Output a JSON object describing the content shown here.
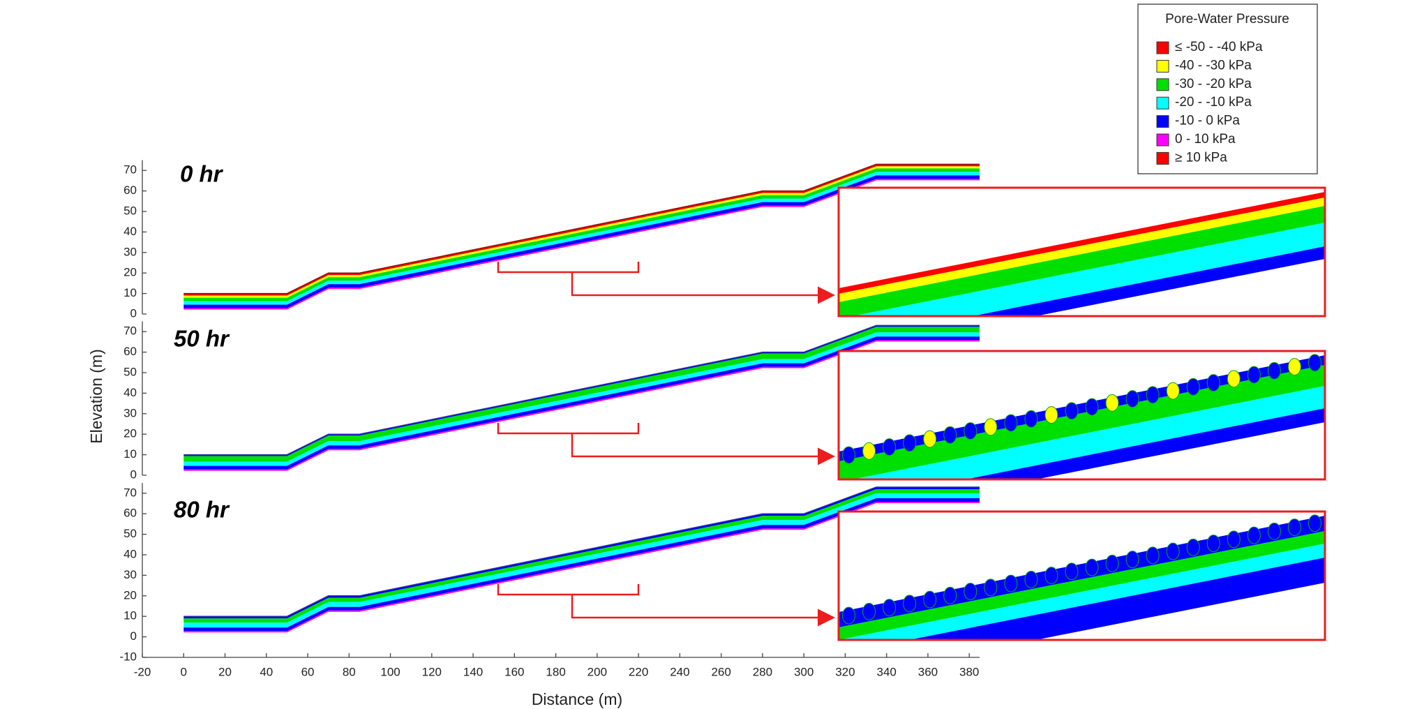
{
  "chart_data": {
    "type": "contour-profile",
    "xlabel": "Distance (m)",
    "ylabel": "Elevation (m)",
    "xlim": [
      -20,
      385
    ],
    "xticks": [
      -20,
      0,
      20,
      40,
      60,
      80,
      100,
      120,
      140,
      160,
      180,
      200,
      220,
      240,
      260,
      280,
      300,
      320,
      340,
      360,
      380
    ],
    "surface": {
      "x": [
        0,
        50,
        70,
        85,
        280,
        300,
        335,
        385
      ],
      "y": [
        10,
        10,
        20,
        20,
        60,
        60,
        73,
        73
      ]
    },
    "legend_title": "Pore-Water Pressure",
    "series": [
      {
        "name": "≤ -50 - -40 kPa",
        "color": "#ff0000"
      },
      {
        "name": "-40 - -30 kPa",
        "color": "#ffff00"
      },
      {
        "name": "-30 - -20 kPa",
        "color": "#00e000"
      },
      {
        "name": "-20 - -10 kPa",
        "color": "#00ffff"
      },
      {
        "name": "-10 - 0 kPa",
        "color": "#0000ff"
      },
      {
        "name": "0 - 10 kPa",
        "color": "#ff00ff"
      },
      {
        "name": "≥ 10 kPa",
        "color": "#ff0000"
      }
    ],
    "panels": [
      {
        "label": "0 hr",
        "ylim": [
          0,
          75
        ],
        "yticks": [
          0,
          10,
          20,
          30,
          40,
          50,
          60,
          70
        ]
      },
      {
        "label": "50 hr",
        "ylim": [
          0,
          75
        ],
        "yticks": [
          0,
          10,
          20,
          30,
          40,
          50,
          60,
          70
        ]
      },
      {
        "label": "80 hr",
        "ylim": [
          -10,
          75
        ],
        "yticks": [
          -10,
          0,
          10,
          20,
          30,
          40,
          50,
          60,
          70
        ]
      }
    ]
  }
}
